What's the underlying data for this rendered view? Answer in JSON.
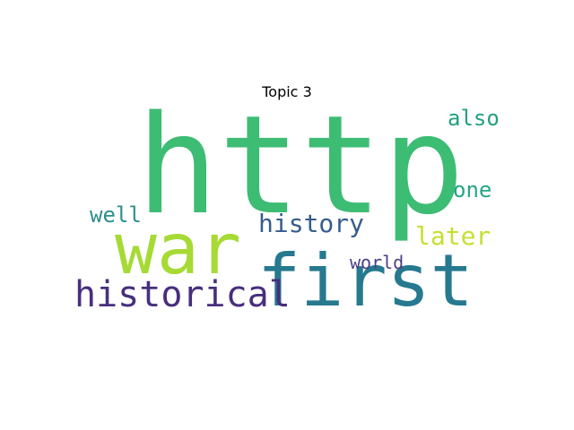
{
  "figure": {
    "title": "Topic 3"
  },
  "wordcloud": {
    "words": [
      {
        "text": "http",
        "color": "#3dbc74"
      },
      {
        "text": "war",
        "color": "#a6da34"
      },
      {
        "text": "first",
        "color": "#26798e"
      },
      {
        "text": "historical",
        "color": "#472f7d"
      },
      {
        "text": "history",
        "color": "#365c8d"
      },
      {
        "text": "later",
        "color": "#c4e034"
      },
      {
        "text": "one",
        "color": "#25a584"
      },
      {
        "text": "also",
        "color": "#23a07f"
      },
      {
        "text": "well",
        "color": "#2c8f8e"
      },
      {
        "text": "world",
        "color": "#4c4085"
      }
    ]
  }
}
